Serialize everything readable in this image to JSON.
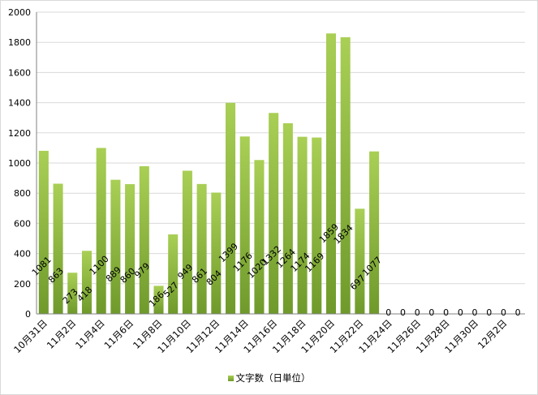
{
  "chart_data": {
    "type": "bar",
    "categories": [
      "10月31日",
      "11月1日",
      "11月2日",
      "11月3日",
      "11月4日",
      "11月5日",
      "11月6日",
      "11月7日",
      "11月8日",
      "11月9日",
      "11月10日",
      "11月11日",
      "11月12日",
      "11月13日",
      "11月14日",
      "11月15日",
      "11月16日",
      "11月17日",
      "11月18日",
      "11月19日",
      "11月20日",
      "11月21日",
      "11月22日",
      "11月23日",
      "11月24日",
      "11月25日",
      "11月26日",
      "11月27日",
      "11月28日",
      "11月29日",
      "11月30日",
      "12月1日",
      "12月2日",
      "12月3日"
    ],
    "series": [
      {
        "name": "文字数（日単位）",
        "values": [
          1081,
          863,
          273,
          418,
          1100,
          889,
          860,
          979,
          186,
          527,
          949,
          861,
          804,
          1399,
          1176,
          1020,
          1332,
          1264,
          1174,
          1169,
          1859,
          1834,
          697,
          1077,
          0,
          0,
          0,
          0,
          0,
          0,
          0,
          0,
          0,
          0
        ]
      }
    ],
    "ylim": [
      0,
      2000
    ],
    "yticks": [
      0,
      200,
      400,
      600,
      800,
      1000,
      1200,
      1400,
      1600,
      1800,
      2000
    ],
    "xtick_labels": [
      "10月31日",
      "11月2日",
      "11月4日",
      "11月6日",
      "11月8日",
      "11月10日",
      "11月12日",
      "11月14日",
      "11月16日",
      "11月18日",
      "11月20日",
      "11月22日",
      "11月24日",
      "11月26日",
      "11月28日",
      "11月30日",
      "12月2日"
    ],
    "grid": true,
    "legend": "bottom",
    "colors": {
      "bar_top": "#a9cf55",
      "bar_bottom": "#6f9a2b",
      "grid": "#d9d9d9",
      "axis": "#808080"
    }
  }
}
